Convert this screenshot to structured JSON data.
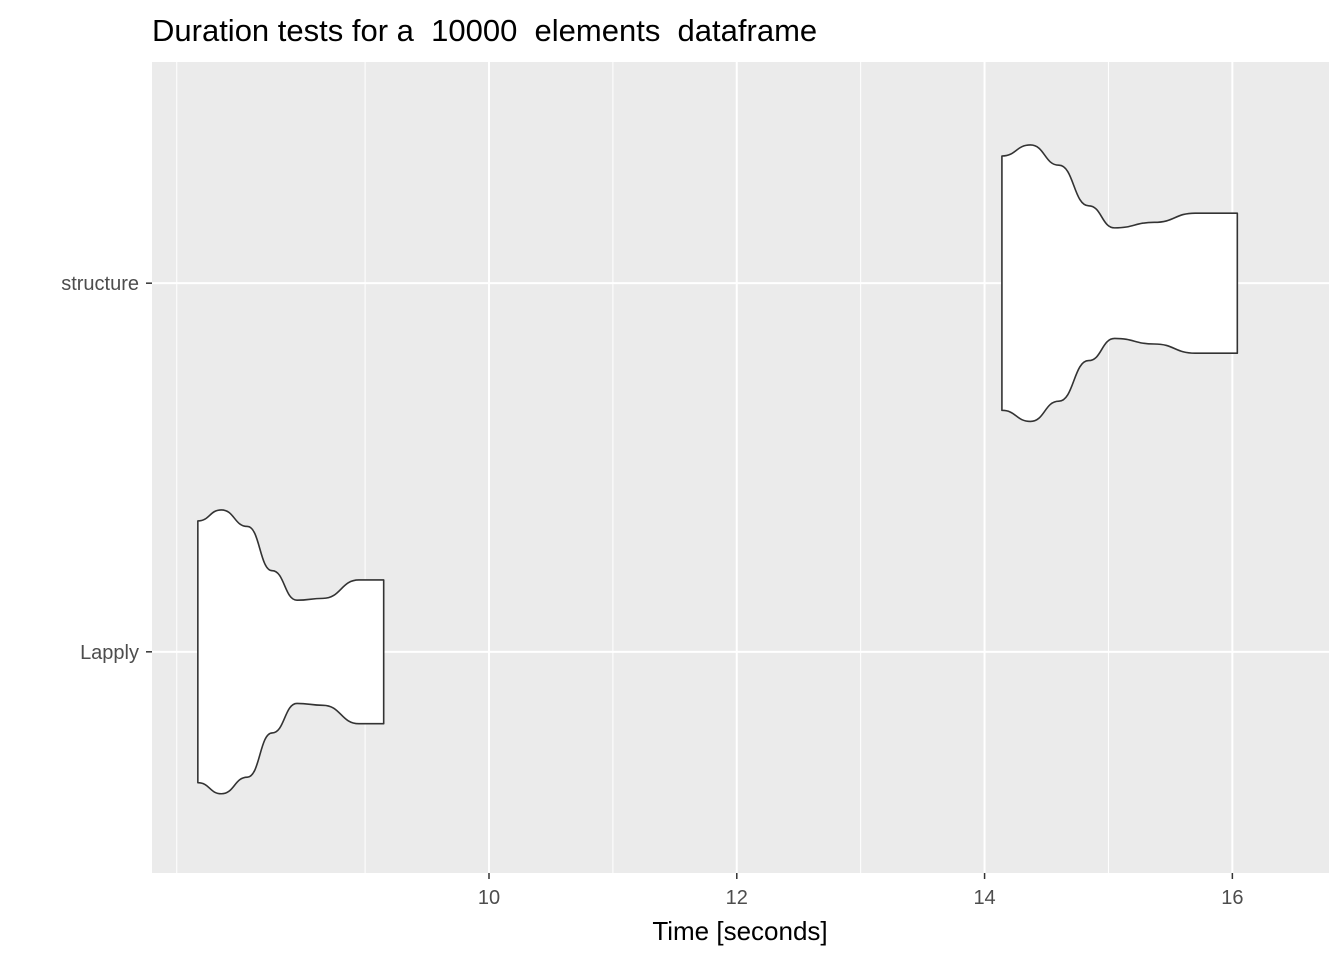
{
  "chart_data": {
    "type": "violin",
    "orientation": "horizontal",
    "title": "Duration tests for a  10000  elements  dataframe",
    "xlabel": "Time [seconds]",
    "ylabel": "",
    "xlim": [
      7.28,
      16.78
    ],
    "x_ticks": [
      {
        "value": 10,
        "label": "10"
      },
      {
        "value": 12,
        "label": "12"
      },
      {
        "value": 14,
        "label": "14"
      },
      {
        "value": 16,
        "label": "16"
      }
    ],
    "x_minor_ticks": [
      9,
      11,
      13,
      15
    ],
    "categories": [
      "Lapply",
      "structure"
    ],
    "grid": true,
    "background": "#ebebeb",
    "gridline_color": "#ffffff",
    "violin_fill": "#ffffff",
    "violin_stroke": "#333333",
    "series": [
      {
        "category": "Lapply",
        "min": 7.65,
        "max": 9.15,
        "density": [
          [
            7.65,
            0.71
          ],
          [
            7.84,
            0.77
          ],
          [
            8.05,
            0.68
          ],
          [
            8.25,
            0.44
          ],
          [
            8.45,
            0.28
          ],
          [
            8.66,
            0.29
          ],
          [
            8.95,
            0.39
          ],
          [
            9.15,
            0.39
          ]
        ]
      },
      {
        "category": "structure",
        "min": 14.14,
        "max": 16.04,
        "density": [
          [
            14.14,
            0.69
          ],
          [
            14.37,
            0.75
          ],
          [
            14.6,
            0.64
          ],
          [
            14.84,
            0.42
          ],
          [
            15.05,
            0.3
          ],
          [
            15.37,
            0.33
          ],
          [
            15.7,
            0.38
          ],
          [
            16.04,
            0.38
          ]
        ]
      }
    ]
  }
}
